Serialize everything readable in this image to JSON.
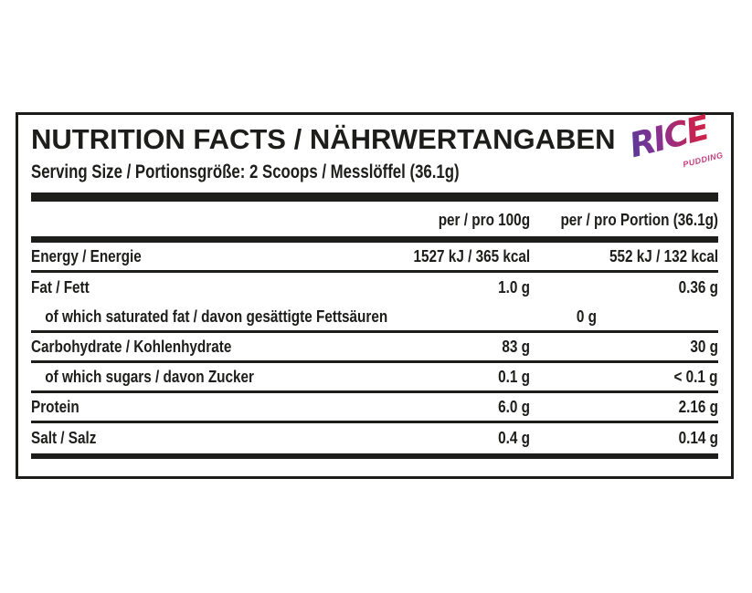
{
  "header": {
    "title": "NUTRITION FACTS / NÄHRWERTANGABEN",
    "serving_size": "Serving Size / Portionsgröße: 2 Scoops / Messlöffel (36.1g)"
  },
  "logo": {
    "brand": "RICE",
    "sub": "PUDDING",
    "gradient_start": "#4a3c99",
    "gradient_mid": "#a62d88",
    "gradient_end": "#d41f3f",
    "sub_color": "#c23d7d"
  },
  "table": {
    "columns": [
      "per / pro 100g",
      "per / pro Portion (36.1g)"
    ],
    "rows": [
      {
        "label": "Energy / Energie",
        "per_100g": "1527 kJ / 365 kcal",
        "per_portion": "552 kJ / 132 kcal",
        "indent": false,
        "rule_after": true
      },
      {
        "label": "Fat / Fett",
        "per_100g": "1.0 g",
        "per_portion": "0.36 g",
        "indent": false,
        "rule_after": false
      },
      {
        "label": "of which saturated fat / davon gesättigte Fettsäuren",
        "per_100g": "0 g",
        "per_portion": "0 g",
        "indent": true,
        "rule_after": true
      },
      {
        "label": "Carbohydrate / Kohlenhydrate",
        "per_100g": "83 g",
        "per_portion": "30 g",
        "indent": false,
        "rule_after": true
      },
      {
        "label": "of which sugars / davon Zucker",
        "per_100g": "0.1 g",
        "per_portion": "< 0.1 g",
        "indent": true,
        "rule_after": true
      },
      {
        "label": "Protein",
        "per_100g": "6.0 g",
        "per_portion": "2.16 g",
        "indent": false,
        "rule_after": true
      },
      {
        "label": "Salt / Salz",
        "per_100g": "0.4 g",
        "per_portion": "0.14 g",
        "indent": false,
        "rule_after": false
      }
    ]
  },
  "colors": {
    "text": "#1d1d1b",
    "background": "#ffffff"
  }
}
